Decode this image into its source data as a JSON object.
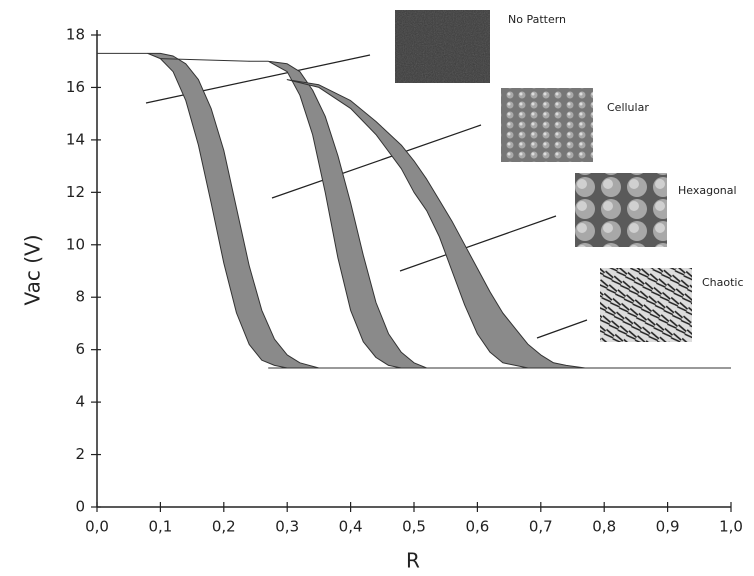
{
  "chart_data": {
    "type": "band",
    "x_label": "R",
    "y_label": "Vac (V)",
    "xlim": [
      0,
      1
    ],
    "ylim": [
      0,
      18
    ],
    "xticks": [
      {
        "value": 0,
        "label": "0,0"
      },
      {
        "value": 0.1,
        "label": "0,1"
      },
      {
        "value": 0.2,
        "label": "0,2"
      },
      {
        "value": 0.3,
        "label": "0,3"
      },
      {
        "value": 0.4,
        "label": "0,4"
      },
      {
        "value": 0.5,
        "label": "0,5"
      },
      {
        "value": 0.6,
        "label": "0,6"
      },
      {
        "value": 0.7,
        "label": "0,7"
      },
      {
        "value": 0.8,
        "label": "0,8"
      },
      {
        "value": 0.9,
        "label": "0,9"
      },
      {
        "value": 1,
        "label": "1,0"
      }
    ],
    "yticks": [
      0,
      2,
      4,
      6,
      8,
      10,
      12,
      14,
      16,
      18
    ],
    "color": "#8a8a8a",
    "bands": [
      {
        "x": [
          0.08,
          0.1,
          0.12,
          0.14,
          0.16,
          0.18,
          0.2,
          0.22,
          0.24,
          0.26,
          0.28,
          0.3,
          0.32,
          0.35
        ],
        "upper": [
          17.3,
          17.3,
          17.2,
          16.9,
          16.3,
          15.2,
          13.6,
          11.4,
          9.2,
          7.5,
          6.4,
          5.8,
          5.5,
          5.3
        ],
        "lower": [
          17.3,
          17.1,
          16.6,
          15.5,
          13.8,
          11.6,
          9.3,
          7.4,
          6.2,
          5.6,
          5.4,
          5.3,
          5.3,
          5.3
        ]
      },
      {
        "x": [
          0.24,
          0.27,
          0.3,
          0.32,
          0.34,
          0.36,
          0.38,
          0.4,
          0.42,
          0.44,
          0.46,
          0.48,
          0.5,
          0.52
        ],
        "upper": [
          17.0,
          17.0,
          16.9,
          16.6,
          15.9,
          14.9,
          13.4,
          11.6,
          9.6,
          7.8,
          6.6,
          5.9,
          5.5,
          5.3
        ],
        "lower": [
          17.0,
          17.0,
          16.6,
          15.7,
          14.2,
          12.0,
          9.5,
          7.5,
          6.3,
          5.7,
          5.4,
          5.3,
          5.3,
          5.3
        ]
      },
      {
        "x": [
          0.3,
          0.35,
          0.4,
          0.44,
          0.48,
          0.5,
          0.52,
          0.54,
          0.56,
          0.58,
          0.6,
          0.62,
          0.64,
          0.66,
          0.68,
          0.7,
          0.72,
          0.74,
          0.77
        ],
        "upper": [
          16.3,
          16.1,
          15.5,
          14.7,
          13.8,
          13.2,
          12.5,
          11.7,
          10.9,
          10.0,
          9.1,
          8.2,
          7.4,
          6.8,
          6.2,
          5.8,
          5.5,
          5.4,
          5.3
        ],
        "lower": [
          16.3,
          16.0,
          15.2,
          14.2,
          12.9,
          12.0,
          11.3,
          10.3,
          9.0,
          7.7,
          6.6,
          5.9,
          5.5,
          5.4,
          5.3,
          5.3,
          5.3,
          5.3,
          5.3
        ]
      }
    ],
    "lines": [
      {
        "x": [
          0,
          0.08
        ],
        "values": [
          17.3,
          17.3
        ]
      },
      {
        "x": [
          0.1,
          0.24
        ],
        "values": [
          17.1,
          17.0
        ]
      },
      {
        "x": [
          0.27,
          1
        ],
        "values": [
          5.3,
          5.3
        ]
      }
    ],
    "annotations": [
      "No Pattern",
      "Cellular",
      "Hexagonal",
      "Chaotic"
    ]
  }
}
